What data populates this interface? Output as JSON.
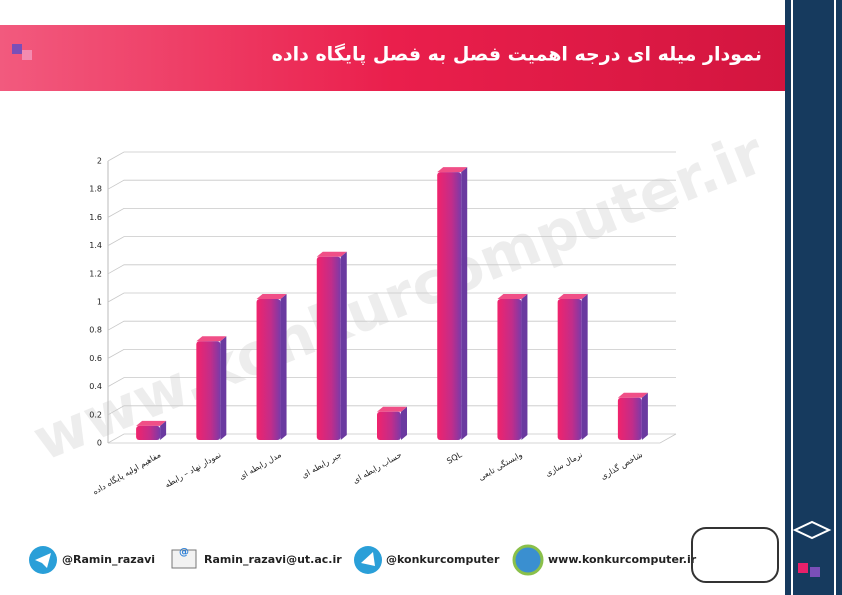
{
  "chart_data": {
    "type": "bar",
    "title": "نمودار میله ای درجه اهمیت فصل به فصل پایگاه داده",
    "categories": [
      "مفاهیم اولیه پایگاه داده",
      "نمودار نهاد – رابطه",
      "مدل رابطه ای",
      "جبر رابطه ای",
      "حساب رابطه ای",
      "SQL",
      "وابستگی تابعی",
      "نرمال سازی",
      "شاخص گذاری"
    ],
    "values": [
      0.1,
      0.7,
      1,
      1.3,
      0.2,
      1.9,
      1,
      1,
      0.3
    ],
    "color": "#e8206a",
    "ylim": [
      0,
      2
    ],
    "yticks": [
      0,
      0.2,
      0.4,
      0.6,
      0.8,
      1,
      1.2,
      1.4,
      1.6,
      1.8,
      2
    ],
    "grid": true
  },
  "watermark": "www.konkurcomputer.ir",
  "footer": {
    "telegram": "@Ramin_razavi",
    "email": "Ramin_razavi@ut.ac.ir",
    "channel": "@konkurcomputer",
    "website": "www.konkurcomputer.ir"
  }
}
